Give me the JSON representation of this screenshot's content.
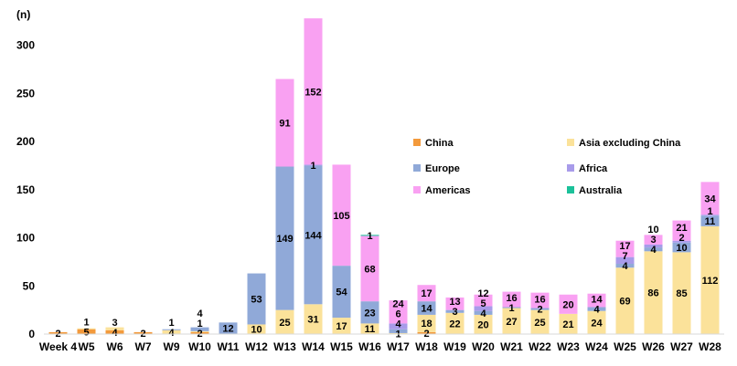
{
  "chart_data": {
    "type": "bar",
    "stacked": true,
    "y_unit_label": "(n)",
    "ylim": [
      0,
      330
    ],
    "yticks": [
      0,
      50,
      100,
      150,
      200,
      250,
      300
    ],
    "grid": false,
    "legend_position": "right",
    "categories": [
      "Week 4",
      "W5",
      "W6",
      "W7",
      "W9",
      "W10",
      "W11",
      "W12",
      "W13",
      "W14",
      "W15",
      "W16",
      "W17",
      "W18",
      "W19",
      "W20",
      "W21",
      "W22",
      "W23",
      "W24",
      "W25",
      "W26",
      "W27",
      "W28"
    ],
    "series": [
      {
        "name": "China",
        "color": "#F39A3C",
        "values": [
          2,
          5,
          4,
          2,
          0,
          2,
          0,
          0,
          0,
          0,
          0,
          0,
          0,
          2,
          0,
          0,
          0,
          0,
          0,
          0,
          0,
          0,
          0,
          0
        ]
      },
      {
        "name": "Asia excluding China",
        "color": "#FBE29A",
        "values": [
          0,
          1,
          3,
          0,
          4,
          1,
          0,
          10,
          25,
          31,
          17,
          11,
          1,
          18,
          22,
          20,
          27,
          25,
          21,
          24,
          69,
          86,
          85,
          112
        ]
      },
      {
        "name": "Europe",
        "color": "#90A9D8",
        "values": [
          0,
          0,
          0,
          0,
          1,
          4,
          12,
          53,
          149,
          144,
          54,
          23,
          4,
          14,
          3,
          4,
          1,
          2,
          0,
          4,
          4,
          4,
          10,
          11
        ]
      },
      {
        "name": "Africa",
        "color": "#A89BEA",
        "values": [
          0,
          0,
          0,
          0,
          0,
          0,
          0,
          0,
          0,
          1,
          0,
          0,
          6,
          0,
          0,
          5,
          0,
          0,
          0,
          0,
          7,
          3,
          2,
          1
        ]
      },
      {
        "name": "Americas",
        "color": "#F9A1F2",
        "values": [
          0,
          0,
          0,
          0,
          0,
          0,
          0,
          0,
          91,
          152,
          105,
          68,
          24,
          17,
          13,
          12,
          16,
          16,
          20,
          14,
          17,
          10,
          21,
          34
        ]
      },
      {
        "name": "Australia",
        "color": "#1BC19A",
        "values": [
          0,
          0,
          0,
          0,
          0,
          0,
          0,
          0,
          0,
          0,
          0,
          1,
          0,
          0,
          0,
          0,
          0,
          0,
          0,
          0,
          0,
          0,
          0,
          0
        ]
      }
    ]
  }
}
